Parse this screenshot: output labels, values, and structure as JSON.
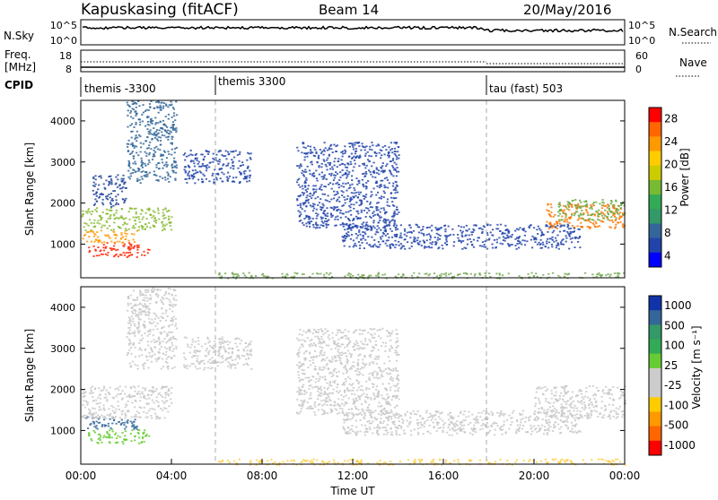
{
  "header": {
    "station": "Kapuskasing (fitACF)",
    "beam": "Beam 14",
    "date": "20/May/2016"
  },
  "panels": {
    "nsky_label": "N.Sky",
    "nsky_ticks": [
      "10^5",
      "10^0"
    ],
    "nsearch_label": "N.Search",
    "nsearch_ticks": [
      "10^5",
      "10^0"
    ],
    "freq_label_1": "Freq.",
    "freq_label_2": "[MHz]",
    "freq_ticks": [
      "18",
      "8"
    ],
    "nave_label": "Nave",
    "nave_ticks": [
      "60",
      "0"
    ],
    "cpid_label": "CPID",
    "cpid_segments": [
      "themis -3300",
      "themis 3300",
      "tau (fast) 503"
    ]
  },
  "chart_data": [
    {
      "type": "heatmap",
      "name": "power",
      "ylabel": "Slant Range [km]",
      "ylim": [
        180,
        4500
      ],
      "yticks": [
        1000,
        2000,
        3000,
        4000
      ],
      "colorbar_label": "Power [dB]",
      "colorbar_ticks": [
        "28",
        "24",
        "20",
        "16",
        "12",
        "8",
        "4"
      ],
      "colorbar_colors": [
        "#ff0000",
        "#ff6600",
        "#ff9900",
        "#ffcc00",
        "#cccc00",
        "#77bb33",
        "#33aa55",
        "#339966",
        "#336699",
        "#2244aa",
        "#0000ff"
      ],
      "echo_regions": [
        {
          "t": [
            0.3,
            3.0
          ],
          "r": [
            700,
            1050
          ],
          "color": "#ff2200"
        },
        {
          "t": [
            0.0,
            2.5
          ],
          "r": [
            1050,
            1350
          ],
          "color": "#ff9900"
        },
        {
          "t": [
            0.0,
            4.0
          ],
          "r": [
            1350,
            1900
          ],
          "color": "#88bb33"
        },
        {
          "t": [
            0.5,
            2.0
          ],
          "r": [
            1900,
            2700
          ],
          "color": "#224499"
        },
        {
          "t": [
            2.0,
            4.2
          ],
          "r": [
            2500,
            4500
          ],
          "color": "#336699"
        },
        {
          "t": [
            4.5,
            7.5
          ],
          "r": [
            2500,
            3300
          ],
          "color": "#2244aa"
        },
        {
          "t": [
            9.5,
            14.0
          ],
          "r": [
            1400,
            3500
          ],
          "color": "#2244aa"
        },
        {
          "t": [
            11.5,
            22.0
          ],
          "r": [
            900,
            1500
          ],
          "color": "#2244aa"
        },
        {
          "t": [
            20.5,
            24.0
          ],
          "r": [
            1400,
            2000
          ],
          "color": "#ff7700"
        },
        {
          "t": [
            21.0,
            24.0
          ],
          "r": [
            1600,
            2100
          ],
          "color": "#66aa44"
        },
        {
          "t": [
            6.0,
            24.0
          ],
          "r": [
            180,
            320
          ],
          "color": "#77aa55"
        }
      ]
    },
    {
      "type": "heatmap",
      "name": "velocity",
      "ylabel": "Slant Range [km]",
      "xlabel": "Time UT",
      "xlim": [
        0,
        24
      ],
      "xticks": [
        "00:00",
        "04:00",
        "08:00",
        "12:00",
        "16:00",
        "20:00",
        "00:00"
      ],
      "ylim": [
        180,
        4500
      ],
      "yticks": [
        1000,
        2000,
        3000,
        4000
      ],
      "colorbar_label": "Velocity [m s⁻¹]",
      "colorbar_ticks": [
        "1000",
        "500",
        "100",
        "25",
        "-25",
        "-100",
        "-500",
        "-1000"
      ],
      "colorbar_colors": [
        "#1133aa",
        "#336699",
        "#339966",
        "#33aa55",
        "#66cc33",
        "#cccccc",
        "#cccccc",
        "#ffcc00",
        "#ff9900",
        "#ff6600",
        "#ff0000"
      ],
      "echo_regions": [
        {
          "t": [
            0.3,
            3.0
          ],
          "r": [
            700,
            1050
          ],
          "color": "#66cc33"
        },
        {
          "t": [
            0.0,
            2.5
          ],
          "r": [
            1050,
            1350
          ],
          "color": "#336699"
        },
        {
          "t": [
            0.0,
            4.0
          ],
          "r": [
            1300,
            2100
          ],
          "color": "#c8c8c8"
        },
        {
          "t": [
            2.0,
            4.2
          ],
          "r": [
            2500,
            4500
          ],
          "color": "#c8c8c8"
        },
        {
          "t": [
            4.5,
            7.5
          ],
          "r": [
            2500,
            3300
          ],
          "color": "#c8c8c8"
        },
        {
          "t": [
            9.5,
            14.0
          ],
          "r": [
            1400,
            3500
          ],
          "color": "#c8c8c8"
        },
        {
          "t": [
            11.5,
            22.0
          ],
          "r": [
            900,
            1500
          ],
          "color": "#c8c8c8"
        },
        {
          "t": [
            20.0,
            24.0
          ],
          "r": [
            1300,
            2100
          ],
          "color": "#c8c8c8"
        },
        {
          "t": [
            6.0,
            24.0
          ],
          "r": [
            180,
            320
          ],
          "color": "#ffcc44"
        }
      ]
    }
  ],
  "colors": {
    "frame": "#000000",
    "dashed_divider": "#aaaaaa"
  }
}
